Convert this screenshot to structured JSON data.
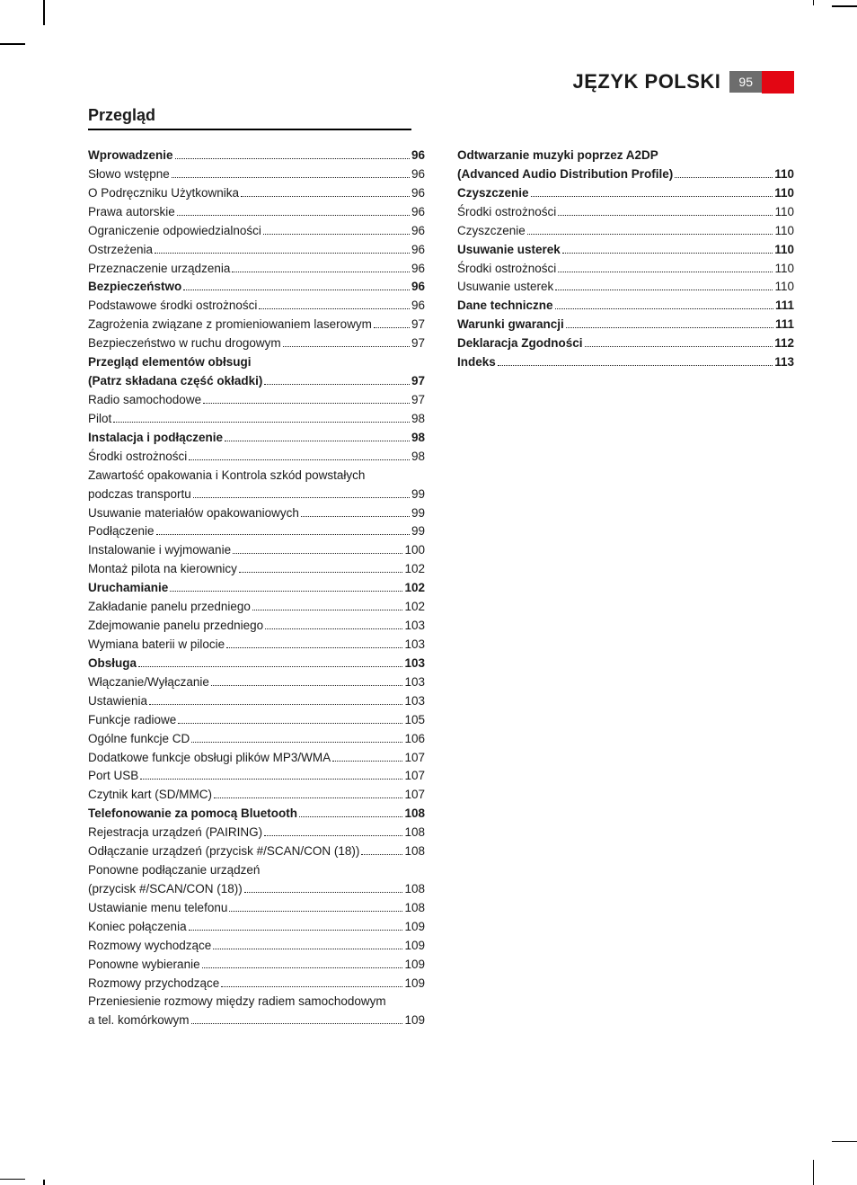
{
  "header": {
    "language": "JĘZYK POLSKI",
    "page_number": "95"
  },
  "section_title": "Przegląd",
  "colors": {
    "red_tab": "#e30613",
    "page_badge_bg": "#6d6d6d",
    "page_badge_text": "#ffffff",
    "text": "#1a1a1a"
  },
  "toc_left": [
    {
      "label": "Wprowadzenie",
      "page": "96",
      "bold": true
    },
    {
      "label": "Słowo wstępne",
      "page": "96"
    },
    {
      "label": "O Podręczniku Użytkownika",
      "page": "96"
    },
    {
      "label": "Prawa autorskie",
      "page": "96"
    },
    {
      "label": "Ograniczenie odpowiedzialności",
      "page": "96"
    },
    {
      "label": "Ostrzeżenia",
      "page": "96"
    },
    {
      "label": "Przeznaczenie urządzenia",
      "page": "96"
    },
    {
      "label": "Bezpieczeństwo",
      "page": "96",
      "bold": true
    },
    {
      "label": "Podstawowe środki ostrożności",
      "page": "96"
    },
    {
      "label": "Zagrożenia związane z promieniowaniem laserowym",
      "page": "97"
    },
    {
      "label": "Bezpieczeństwo w ruchu drogowym",
      "page": "97"
    },
    {
      "label": "Przegląd elementów obłsugi",
      "noline": true,
      "bold": true
    },
    {
      "label": "(Patrz składana część okładki)",
      "page": "97",
      "bold": true
    },
    {
      "label": "Radio samochodowe",
      "page": "97"
    },
    {
      "label": "Pilot",
      "page": "98"
    },
    {
      "label": "Instalacja i podłączenie",
      "page": "98",
      "bold": true
    },
    {
      "label": "Środki ostrożności",
      "page": "98"
    },
    {
      "label": "Zawartość opakowania i Kontrola szkód powstałych",
      "noline": true
    },
    {
      "label": "podczas transportu",
      "page": "99"
    },
    {
      "label": "Usuwanie materiałów opakowaniowych",
      "page": "99"
    },
    {
      "label": "Podłączenie",
      "page": "99"
    },
    {
      "label": "Instalowanie i wyjmowanie",
      "page": "100"
    },
    {
      "label": "Montaż pilota na kierownicy",
      "page": "102"
    },
    {
      "label": "Uruchamianie",
      "page": "102",
      "bold": true
    },
    {
      "label": "Zakładanie panelu przedniego",
      "page": "102"
    },
    {
      "label": "Zdejmowanie panelu przedniego",
      "page": "103"
    },
    {
      "label": "Wymiana baterii w pilocie",
      "page": "103"
    },
    {
      "label": "Obsługa",
      "page": "103",
      "bold": true
    },
    {
      "label": "Włączanie/Wyłączanie",
      "page": "103"
    },
    {
      "label": "Ustawienia",
      "page": "103"
    },
    {
      "label": "Funkcje radiowe",
      "page": "105"
    },
    {
      "label": "Ogólne funkcje CD",
      "page": "106"
    },
    {
      "label": "Dodatkowe funkcje obsługi plików MP3/WMA",
      "page": "107"
    },
    {
      "label": "Port USB",
      "page": "107"
    },
    {
      "label": "Czytnik kart (SD/MMC)",
      "page": "107"
    },
    {
      "label": "Telefonowanie za pomocą Bluetooth",
      "page": "108",
      "bold": true
    },
    {
      "label": "Rejestracja urządzeń (PAIRING)",
      "page": "108"
    },
    {
      "label": "Odłączanie urządzeń (przycisk #/SCAN/CON (18))",
      "page": "108"
    },
    {
      "label": "Ponowne podłączanie urządzeń",
      "noline": true
    },
    {
      "label": "(przycisk #/SCAN/CON (18))",
      "page": "108"
    },
    {
      "label": "Ustawianie menu telefonu",
      "page": "108"
    },
    {
      "label": "Koniec połączenia",
      "page": "109"
    },
    {
      "label": "Rozmowy wychodzące",
      "page": "109"
    },
    {
      "label": "Ponowne wybieranie",
      "page": "109"
    },
    {
      "label": "Rozmowy przychodzące",
      "page": "109"
    },
    {
      "label": "Przeniesienie rozmowy między radiem samochodowym",
      "noline": true
    },
    {
      "label": "a tel. komórkowym",
      "page": "109"
    }
  ],
  "toc_right": [
    {
      "label": "Odtwarzanie muzyki poprzez A2DP",
      "noline": true,
      "bold": true
    },
    {
      "label": "(Advanced Audio Distribution Profile)",
      "page": "110",
      "bold": true
    },
    {
      "label": "Czyszczenie",
      "page": "110",
      "bold": true
    },
    {
      "label": "Środki ostrożności",
      "page": "110"
    },
    {
      "label": "Czyszczenie",
      "page": "110"
    },
    {
      "label": "Usuwanie usterek",
      "page": "110",
      "bold": true
    },
    {
      "label": "Środki ostrożności",
      "page": "110"
    },
    {
      "label": "Usuwanie usterek",
      "page": "110"
    },
    {
      "label": "Dane techniczne",
      "page": "111",
      "bold": true
    },
    {
      "label": "Warunki gwarancji",
      "page": "111",
      "bold": true
    },
    {
      "label": "Deklaracja Zgodności",
      "page": "112",
      "bold": true
    },
    {
      "label": "Indeks",
      "page": "113",
      "bold": true
    }
  ]
}
